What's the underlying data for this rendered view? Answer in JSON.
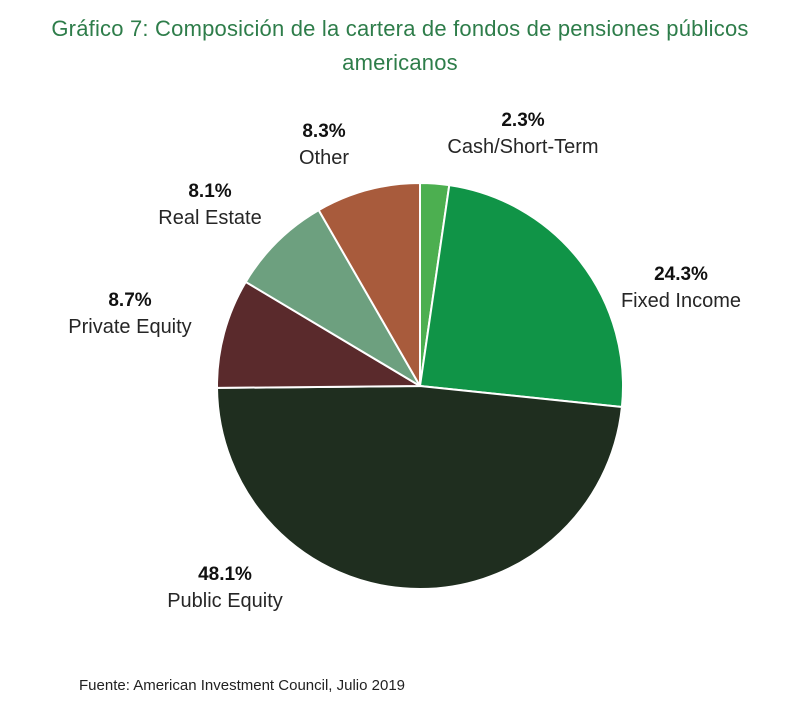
{
  "title_line1": "Gráfico 7: Composición de la cartera de fondos de pensiones públicos",
  "title_line2": "americanos",
  "source": "Fuente: American Investment Council, Julio 2019",
  "chart_data": {
    "type": "pie",
    "title": "Gráfico 7: Composición de la cartera de fondos de pensiones públicos americanos",
    "unit": "%",
    "slices": [
      {
        "label": "Cash/Short-Term",
        "value": 2.3,
        "value_label": "2.3%",
        "color": "#4caf50"
      },
      {
        "label": "Fixed Income",
        "value": 24.3,
        "value_label": "24.3%",
        "color": "#109447"
      },
      {
        "label": "Public Equity",
        "value": 48.1,
        "value_label": "48.1%",
        "color": "#1f2e1f"
      },
      {
        "label": "Private Equity",
        "value": 8.7,
        "value_label": "8.7%",
        "color": "#5a2a2c"
      },
      {
        "label": "Real Estate",
        "value": 8.1,
        "value_label": "8.1%",
        "color": "#6da07f"
      },
      {
        "label": "Other",
        "value": 8.3,
        "value_label": "8.3%",
        "color": "#a85b3c"
      }
    ],
    "start_angle": "top, clockwise",
    "legend": "none (labels beside slices)"
  }
}
